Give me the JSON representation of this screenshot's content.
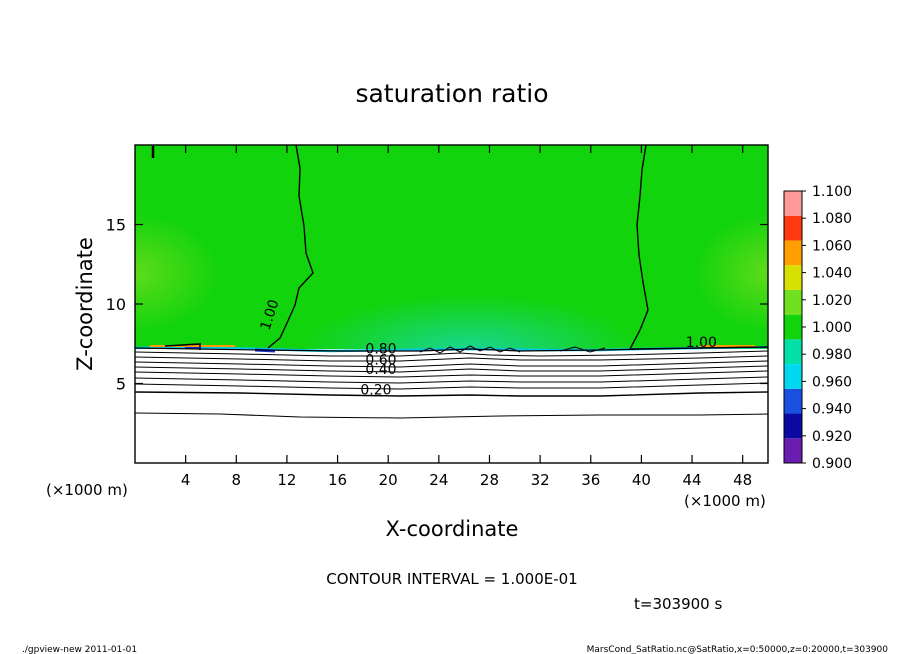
{
  "chart_data": {
    "type": "heatmap",
    "title": "saturation ratio",
    "xlabel": "X-coordinate",
    "ylabel": "Z-coordinate",
    "x_unit": "(×1000 m)",
    "y_unit": "(×1000 m)",
    "xlim": [
      0,
      50
    ],
    "ylim": [
      0,
      20
    ],
    "x_ticks": [
      4,
      8,
      12,
      16,
      20,
      24,
      28,
      32,
      36,
      40,
      44,
      48
    ],
    "y_ticks": [
      5,
      10,
      15
    ],
    "colorbar": {
      "levels": [
        0.9,
        0.92,
        0.94,
        0.96,
        0.98,
        1.0,
        1.02,
        1.04,
        1.06,
        1.08,
        1.1
      ],
      "labels": [
        "0.900",
        "0.920",
        "0.940",
        "0.960",
        "0.980",
        "1.000",
        "1.020",
        "1.040",
        "1.060",
        "1.080",
        "1.100"
      ],
      "colors": [
        "#6a1bb0",
        "#0a0aa0",
        "#1a50e0",
        "#00d8f0",
        "#00e0a8",
        "#12d40c",
        "#70e020",
        "#d8e000",
        "#ffa000",
        "#ff3a10",
        "#ff9a9a"
      ]
    },
    "contour_labels": [
      {
        "text": "1.00",
        "x": 10.6,
        "y": 8.3
      },
      {
        "text": "1.00",
        "x": 43.5,
        "y": 7.3
      },
      {
        "text": "0.80",
        "x": 18.2,
        "y": 6.9
      },
      {
        "text": "0.60",
        "x": 18.2,
        "y": 6.2
      },
      {
        "text": "0.40",
        "x": 18.2,
        "y": 5.6
      },
      {
        "text": "0.20",
        "x": 17.8,
        "y": 4.3
      }
    ],
    "contour_interval": "CONTOUR INTERVAL = 1.000E-01",
    "time": "t=303900 s"
  },
  "footer": {
    "left": "./gpview-new   2011-01-01",
    "right": "MarsCond_SatRatio.nc@SatRatio,x=0:50000,z=0:20000,t=303900"
  }
}
